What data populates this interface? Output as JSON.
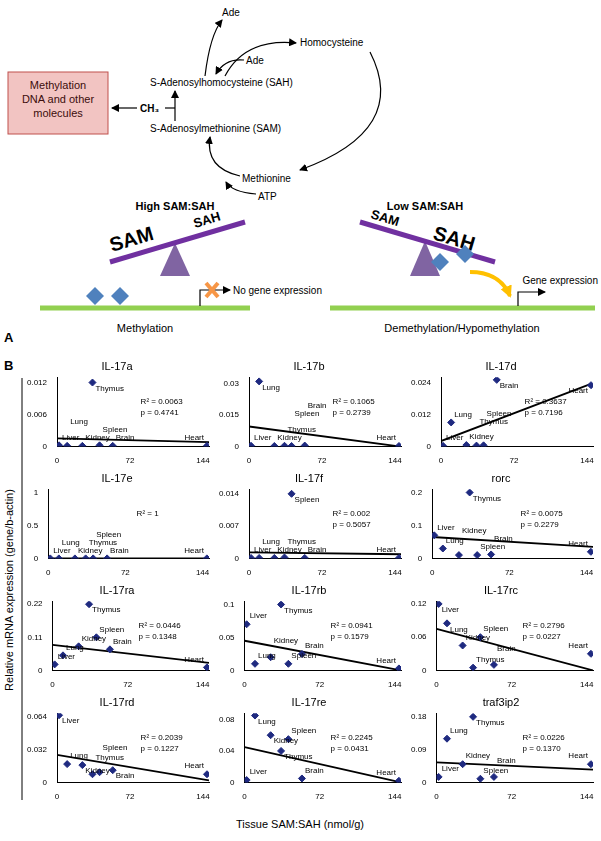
{
  "diagram": {
    "label": "A",
    "cycle": {
      "ade_top": "Ade",
      "homocysteine": "Homocysteine",
      "ade": "Ade",
      "sah": "S-Adenosylhomocysteine (SAH)",
      "sam": "S-Adenosylmethionine (SAM)",
      "methionine": "Methionine",
      "atp": "ATP",
      "methyl": "CH₃"
    },
    "box": "Methylation DNA and other molecules",
    "left": {
      "title": "High SAM:SAH",
      "heavy": "SAM",
      "light": "SAH",
      "outcome": "No gene expression",
      "caption": "Methylation"
    },
    "right": {
      "title": "Low SAM:SAH",
      "light": "SAM",
      "heavy": "SAH",
      "outcome": "Gene expression",
      "caption": "Demethylation/Hypomethylation"
    }
  },
  "panel_b": {
    "label": "B",
    "y_label": "Relative mRNA expression (gene/b-actin)",
    "x_label": "Tissue SAM:SAH (nmol/g)"
  },
  "chart_data": [
    {
      "type": "scatter",
      "title": "IL-17a",
      "point_labels": [
        "Liver",
        "Lung",
        "Kidney",
        "Thymus",
        "Spleen",
        "Brain",
        "Heart"
      ],
      "x": [
        2,
        10,
        25,
        35,
        42,
        55,
        148
      ],
      "values": [
        0.0002,
        0.0001,
        0.0001,
        0.012,
        0.0002,
        0.0001,
        0.0001
      ],
      "trend_line": {
        "x": [
          0,
          150
        ],
        "values": [
          0.0015,
          0.0008
        ]
      },
      "annotations": [
        "R² = 0.0063",
        "p = 0.4741"
      ],
      "color": "#1f2a80",
      "marker": "diamond",
      "grid": false,
      "xlim": [
        0,
        150
      ],
      "xticks": [
        0,
        72,
        144
      ],
      "ylim": [
        0,
        0.013
      ],
      "yticks": [
        0,
        0.006,
        0.012
      ]
    },
    {
      "type": "scatter",
      "title": "IL-17b",
      "point_labels": [
        "Liver",
        "Lung",
        "Kidney",
        "Thymus",
        "Spleen",
        "Brain",
        "Heart"
      ],
      "x": [
        2,
        10,
        25,
        35,
        42,
        55,
        148
      ],
      "values": [
        0.0003,
        0.031,
        0.0002,
        0.0003,
        0.0002,
        0.0004,
        0.0002
      ],
      "trend_line": {
        "x": [
          0,
          148
        ],
        "values": [
          0.0095,
          0
        ]
      },
      "annotations": [
        "R² = 0.1065",
        "p = 0.2739"
      ],
      "color": "#1f2a80",
      "marker": "diamond",
      "grid": false,
      "xlim": [
        0,
        150
      ],
      "xticks": [
        0,
        72,
        144
      ],
      "ylim": [
        0,
        0.033
      ],
      "yticks": [
        0,
        0.015,
        0.03
      ]
    },
    {
      "type": "scatter",
      "title": "IL-17d",
      "point_labels": [
        "Liver",
        "Lung",
        "Kidney",
        "Thymus",
        "Spleen",
        "Brain",
        "Heart"
      ],
      "x": [
        2,
        10,
        25,
        35,
        42,
        55,
        148
      ],
      "values": [
        0.0002,
        0.009,
        0.0005,
        0.0003,
        0.0004,
        0.025,
        0.023
      ],
      "trend_line": {
        "x": [
          0,
          148
        ],
        "values": [
          0.002,
          0.0235
        ]
      },
      "annotations": [
        "R² = 0.3637",
        "p = 0.7196"
      ],
      "color": "#1f2a80",
      "marker": "diamond",
      "grid": false,
      "xlim": [
        0,
        150
      ],
      "xticks": [
        0,
        72,
        144
      ],
      "ylim": [
        0,
        0.026
      ],
      "yticks": [
        0,
        0.012,
        0.024
      ]
    },
    {
      "type": "scatter",
      "title": "IL-17e",
      "point_labels": [
        "Liver",
        "Lung",
        "Kidney",
        "Thymus",
        "Spleen",
        "Brain",
        "Heart"
      ],
      "x": [
        2,
        10,
        25,
        35,
        42,
        55,
        148
      ],
      "values": [
        0,
        0,
        0,
        0,
        0,
        0,
        0
      ],
      "trend_line": {
        "x": [
          0,
          150
        ],
        "values": [
          0,
          0
        ]
      },
      "annotations": [
        "R² = 1"
      ],
      "color": "#1f2a80",
      "marker": "diamond",
      "grid": false,
      "xlim": [
        0,
        150
      ],
      "xticks": [
        0,
        72,
        144
      ],
      "ylim": [
        0,
        1.05
      ],
      "yticks": [
        0,
        0.5,
        1
      ]
    },
    {
      "type": "scatter",
      "title": "IL-17f",
      "point_labels": [
        "Liver",
        "Lung",
        "Kidney",
        "Thymus",
        "Spleen",
        "Brain",
        "Heart"
      ],
      "x": [
        2,
        10,
        25,
        35,
        42,
        55,
        148
      ],
      "values": [
        0.0001,
        0.0001,
        0.0001,
        0.0002,
        0.014,
        0.0001,
        0.0001
      ],
      "trend_line": {
        "x": [
          0,
          150
        ],
        "values": [
          0.0013,
          0.0009
        ]
      },
      "annotations": [
        "R² = 0.002",
        "p = 0.5057"
      ],
      "color": "#1f2a80",
      "marker": "diamond",
      "grid": false,
      "xlim": [
        0,
        150
      ],
      "xticks": [
        0,
        72,
        144
      ],
      "ylim": [
        0,
        0.015
      ],
      "yticks": [
        0,
        0.007,
        0.014
      ]
    },
    {
      "type": "scatter",
      "title": "rorc",
      "point_labels": [
        "Liver",
        "Lung",
        "Kidney",
        "Thymus",
        "Spleen",
        "Brain",
        "Heart"
      ],
      "x": [
        2,
        10,
        25,
        35,
        42,
        55,
        148
      ],
      "values": [
        0.07,
        0.03,
        0.01,
        0.2,
        0.01,
        0.012,
        0.02
      ],
      "trend_line": {
        "x": [
          0,
          150
        ],
        "values": [
          0.065,
          0.035
        ]
      },
      "annotations": [
        "R² = 0.0075",
        "p = 0.2279"
      ],
      "color": "#1f2a80",
      "marker": "diamond",
      "grid": false,
      "xlim": [
        0,
        150
      ],
      "xticks": [
        0,
        72,
        144
      ],
      "ylim": [
        0,
        0.21
      ],
      "yticks": [
        0,
        0.1,
        0.2
      ]
    },
    {
      "type": "scatter",
      "title": "IL-17ra",
      "point_labels": [
        "Liver",
        "Lung",
        "Kidney",
        "Thymus",
        "Spleen",
        "Brain",
        "Heart"
      ],
      "x": [
        2,
        10,
        25,
        35,
        42,
        55,
        148
      ],
      "values": [
        0.02,
        0.05,
        0.08,
        0.22,
        0.11,
        0.07,
        0.01
      ],
      "trend_line": {
        "x": [
          0,
          150
        ],
        "values": [
          0.085,
          0.025
        ]
      },
      "annotations": [
        "R² = 0.0446",
        "p = 0.1348"
      ],
      "color": "#1f2a80",
      "marker": "diamond",
      "grid": false,
      "xlim": [
        0,
        150
      ],
      "xticks": [
        0,
        72,
        144
      ],
      "ylim": [
        0,
        0.23
      ],
      "yticks": [
        0,
        0.11,
        0.22
      ]
    },
    {
      "type": "scatter",
      "title": "IL-17rb",
      "point_labels": [
        "Liver",
        "Lung",
        "Kidney",
        "Thymus",
        "Spleen",
        "Brain",
        "Heart"
      ],
      "x": [
        2,
        10,
        25,
        35,
        42,
        55,
        148
      ],
      "values": [
        0.07,
        0.01,
        0.02,
        0.1,
        0.01,
        0.025,
        0.003
      ],
      "trend_line": {
        "x": [
          0,
          150
        ],
        "values": [
          0.045,
          0
        ]
      },
      "annotations": [
        "R² = 0.0941",
        "p = 0.1579"
      ],
      "color": "#1f2a80",
      "marker": "diamond",
      "grid": false,
      "xlim": [
        0,
        150
      ],
      "xticks": [
        0,
        72,
        144
      ],
      "ylim": [
        0,
        0.105
      ],
      "yticks": [
        0,
        0.05,
        0.1
      ]
    },
    {
      "type": "scatter",
      "title": "IL-17rc",
      "point_labels": [
        "Liver",
        "Lung",
        "Kidney",
        "Thymus",
        "Spleen",
        "Brain",
        "Heart"
      ],
      "x": [
        2,
        10,
        25,
        35,
        42,
        55,
        148
      ],
      "values": [
        0.12,
        0.085,
        0.045,
        0.005,
        0.06,
        0.01,
        0.03
      ],
      "trend_line": {
        "x": [
          0,
          150
        ],
        "values": [
          0.075,
          0
        ]
      },
      "annotations": [
        "R² = 0.2796",
        "p = 0.0227"
      ],
      "color": "#1f2a80",
      "marker": "diamond",
      "grid": false,
      "xlim": [
        0,
        150
      ],
      "xticks": [
        0,
        72,
        144
      ],
      "ylim": [
        0,
        0.125
      ],
      "yticks": [
        0,
        0.06,
        0.12
      ]
    },
    {
      "type": "scatter",
      "title": "IL-17rd",
      "point_labels": [
        "Liver",
        "Lung",
        "Kidney",
        "Thymus",
        "Spleen",
        "Brain",
        "Heart"
      ],
      "x": [
        2,
        10,
        25,
        35,
        42,
        55,
        148
      ],
      "values": [
        0.066,
        0.018,
        0.017,
        0.008,
        0.01,
        0.012,
        0.008
      ],
      "trend_line": {
        "x": [
          0,
          150
        ],
        "values": [
          0.027,
          0.002
        ]
      },
      "annotations": [
        "R² = 0.2039",
        "p = 0.1227"
      ],
      "color": "#1f2a80",
      "marker": "diamond",
      "grid": false,
      "xlim": [
        0,
        150
      ],
      "xticks": [
        0,
        72,
        144
      ],
      "ylim": [
        0,
        0.068
      ],
      "yticks": [
        0,
        0.032,
        0.064
      ]
    },
    {
      "type": "scatter",
      "title": "IL-17re",
      "point_labels": [
        "Liver",
        "Lung",
        "Kidney",
        "Thymus",
        "Spleen",
        "Brain",
        "Heart"
      ],
      "x": [
        2,
        10,
        25,
        35,
        42,
        55,
        148
      ],
      "values": [
        0.003,
        0.085,
        0.06,
        0.04,
        0.055,
        0.005,
        0.002
      ],
      "trend_line": {
        "x": [
          0,
          150
        ],
        "values": [
          0.045,
          0
        ]
      },
      "annotations": [
        "R² = 0.2245",
        "p = 0.0431"
      ],
      "color": "#1f2a80",
      "marker": "diamond",
      "grid": false,
      "xlim": [
        0,
        150
      ],
      "xticks": [
        0,
        72,
        144
      ],
      "ylim": [
        0,
        0.088
      ],
      "yticks": [
        0,
        0.04,
        0.08
      ]
    },
    {
      "type": "scatter",
      "title": "traf3ip2",
      "point_labels": [
        "Liver",
        "Lung",
        "Kidney",
        "Thymus",
        "Spleen",
        "Brain",
        "Heart"
      ],
      "x": [
        2,
        10,
        25,
        35,
        42,
        55,
        148
      ],
      "values": [
        0.015,
        0.12,
        0.05,
        0.18,
        0.01,
        0.015,
        0.05
      ],
      "trend_line": {
        "x": [
          0,
          150
        ],
        "values": [
          0.055,
          0.035
        ]
      },
      "annotations": [
        "R² = 0.0226",
        "p = 0.1370"
      ],
      "color": "#1f2a80",
      "marker": "diamond",
      "grid": false,
      "xlim": [
        0,
        150
      ],
      "xticks": [
        0,
        72,
        144
      ],
      "ylim": [
        0,
        0.19
      ],
      "yticks": [
        0,
        0.09,
        0.18
      ]
    }
  ]
}
